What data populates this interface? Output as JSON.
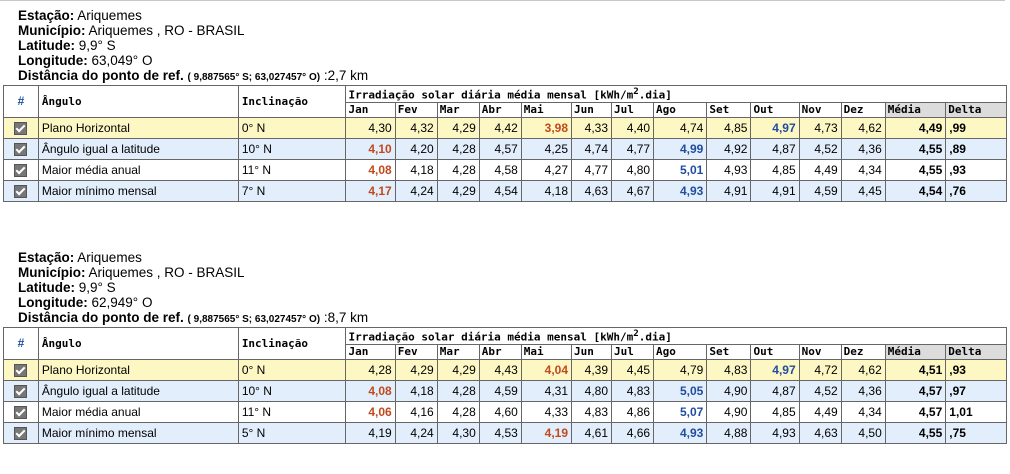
{
  "labels": {
    "estacao": "Estação:",
    "municipio": "Município:",
    "latitude": "Latitude:",
    "longitude": "Longitude:",
    "distancia": "Distância do ponto de ref.",
    "hash": "#",
    "angulo": "Ângulo",
    "inclinacao": "Inclinação",
    "irradiacao_pre": "Irradiação solar diária média mensal [kWh/m",
    "irradiacao_sup": "2",
    "irradiacao_post": ".dia]",
    "months": [
      "Jan",
      "Fev",
      "Mar",
      "Abr",
      "Mai",
      "Jun",
      "Jul",
      "Ago",
      "Set",
      "Out",
      "Nov",
      "Dez"
    ],
    "media": "Média",
    "delta": "Delta"
  },
  "stations": [
    {
      "estacao": "Ariquemes",
      "municipio": "Ariquemes , RO - BRASIL",
      "latitude": "9,9° S",
      "longitude": "63,049° O",
      "ref_coords": "( 9,887565° S; 63,027457° O)",
      "distancia": ":2,7 km",
      "rows": [
        {
          "angulo": "Plano Horizontal",
          "inclinacao": "0° N",
          "values": [
            "4,30",
            "4,32",
            "4,29",
            "4,42",
            "3,98",
            "4,33",
            "4,40",
            "4,74",
            "4,85",
            "4,97",
            "4,73",
            "4,62"
          ],
          "min_index": 4,
          "max_index": 9,
          "media": "4,49",
          "delta": ",99"
        },
        {
          "angulo": "Ângulo igual a latitude",
          "inclinacao": "10° N",
          "values": [
            "4,10",
            "4,20",
            "4,28",
            "4,57",
            "4,25",
            "4,74",
            "4,77",
            "4,99",
            "4,92",
            "4,87",
            "4,52",
            "4,36"
          ],
          "min_index": 0,
          "max_index": 7,
          "media": "4,55",
          "delta": ",89"
        },
        {
          "angulo": "Maior média anual",
          "inclinacao": "11° N",
          "values": [
            "4,08",
            "4,18",
            "4,28",
            "4,58",
            "4,27",
            "4,77",
            "4,80",
            "5,01",
            "4,93",
            "4,85",
            "4,49",
            "4,34"
          ],
          "min_index": 0,
          "max_index": 7,
          "media": "4,55",
          "delta": ",93"
        },
        {
          "angulo": "Maior mínimo mensal",
          "inclinacao": "7° N",
          "values": [
            "4,17",
            "4,24",
            "4,29",
            "4,54",
            "4,18",
            "4,63",
            "4,67",
            "4,93",
            "4,91",
            "4,91",
            "4,59",
            "4,45"
          ],
          "min_index": 0,
          "max_index": 7,
          "media": "4,54",
          "delta": ",76"
        }
      ]
    },
    {
      "estacao": "Ariquemes",
      "municipio": "Ariquemes , RO - BRASIL",
      "latitude": "9,9° S",
      "longitude": "62,949° O",
      "ref_coords": "( 9,887565° S; 63,027457° O)",
      "distancia": ":8,7 km",
      "rows": [
        {
          "angulo": "Plano Horizontal",
          "inclinacao": "0° N",
          "values": [
            "4,28",
            "4,29",
            "4,29",
            "4,43",
            "4,04",
            "4,39",
            "4,45",
            "4,79",
            "4,83",
            "4,97",
            "4,72",
            "4,62"
          ],
          "min_index": 4,
          "max_index": 9,
          "media": "4,51",
          "delta": ",93"
        },
        {
          "angulo": "Ângulo igual a latitude",
          "inclinacao": "10° N",
          "values": [
            "4,08",
            "4,18",
            "4,28",
            "4,59",
            "4,31",
            "4,80",
            "4,83",
            "5,05",
            "4,90",
            "4,87",
            "4,52",
            "4,36"
          ],
          "min_index": 0,
          "max_index": 7,
          "media": "4,57",
          "delta": ",97"
        },
        {
          "angulo": "Maior média anual",
          "inclinacao": "11° N",
          "values": [
            "4,06",
            "4,16",
            "4,28",
            "4,60",
            "4,33",
            "4,83",
            "4,86",
            "5,07",
            "4,90",
            "4,85",
            "4,49",
            "4,34"
          ],
          "min_index": 0,
          "max_index": 7,
          "media": "4,57",
          "delta": "1,01"
        },
        {
          "angulo": "Maior mínimo mensal",
          "inclinacao": "5° N",
          "values": [
            "4,19",
            "4,24",
            "4,30",
            "4,53",
            "4,19",
            "4,61",
            "4,66",
            "4,93",
            "4,88",
            "4,93",
            "4,63",
            "4,50"
          ],
          "min_index": 4,
          "max_index": 7,
          "media": "4,55",
          "delta": ",75"
        }
      ]
    }
  ]
}
